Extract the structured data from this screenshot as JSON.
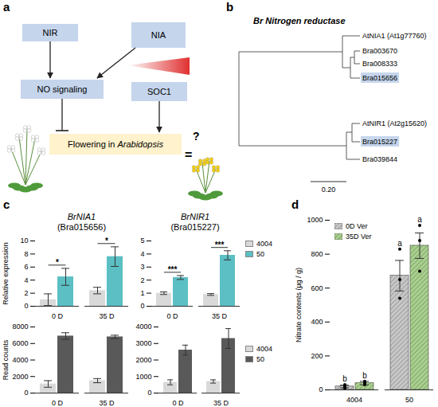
{
  "panel_labels": [
    "a",
    "b",
    "c",
    "d"
  ],
  "diagram": {
    "nodes": {
      "nir": "NIR",
      "nia": "NIA",
      "no": "NO signaling",
      "soc1": "SOC1",
      "flowering": "Flowering in Arabidopsis"
    },
    "question": "?",
    "equals": "="
  },
  "tree": {
    "title": "Br Nitrogen reductase",
    "leaves": [
      {
        "label": "AtNIA1 (At1g77760)",
        "highlight": false
      },
      {
        "label": "Bra003670",
        "highlight": false
      },
      {
        "label": "Bra008333",
        "highlight": false
      },
      {
        "label": "Bra015656",
        "highlight": true
      },
      {
        "label": "AtNIR1 (At2g15620)",
        "highlight": false
      },
      {
        "label": "Bra015227",
        "highlight": true
      },
      {
        "label": "Bra039844",
        "highlight": false
      }
    ],
    "scale_bar": {
      "value": 0.2,
      "label": "0.20"
    }
  },
  "chart_data": [
    {
      "type": "bar",
      "title": "BrNIA1",
      "subtitle": "(Bra015656)",
      "y_label": "Relative expression",
      "categories": [
        "0 D",
        "35 D"
      ],
      "series": [
        {
          "name": "4004",
          "color": "#d9d9d9",
          "values": [
            1.0,
            2.4
          ],
          "errors": [
            0.9,
            0.5
          ]
        },
        {
          "name": "50",
          "color": "#5bbfc4",
          "values": [
            4.5,
            7.6
          ],
          "errors": [
            1.3,
            1.5
          ]
        }
      ],
      "ylim": [
        0,
        10
      ],
      "yticks": [
        0,
        2,
        4,
        6,
        8,
        10
      ],
      "significance": [
        "*",
        "*"
      ]
    },
    {
      "type": "bar",
      "title": "BrNIR1",
      "subtitle": "(Bra015227)",
      "categories": [
        "0 D",
        "35 D"
      ],
      "series": [
        {
          "name": "4004",
          "color": "#d9d9d9",
          "values": [
            1.0,
            0.9
          ],
          "errors": [
            0.1,
            0.07
          ]
        },
        {
          "name": "50",
          "color": "#5bbfc4",
          "values": [
            2.2,
            3.9
          ],
          "errors": [
            0.15,
            0.35
          ]
        }
      ],
      "ylim": [
        0,
        5
      ],
      "yticks": [
        0,
        1,
        2,
        3,
        4,
        5
      ],
      "significance": [
        "***",
        "***"
      ],
      "legend": "right"
    },
    {
      "type": "bar",
      "y_label": "Read counts",
      "categories": [
        "0 D",
        "35 D"
      ],
      "series": [
        {
          "name": "4004",
          "color": "#d9d9d9",
          "values": [
            1100,
            1500
          ],
          "errors": [
            400,
            250
          ]
        },
        {
          "name": "50",
          "color": "#595959",
          "values": [
            6900,
            6800
          ],
          "errors": [
            400,
            200
          ]
        }
      ],
      "ylim": [
        0,
        8000
      ],
      "yticks": [
        0,
        2000,
        4000,
        6000,
        8000
      ]
    },
    {
      "type": "bar",
      "categories": [
        "0 D",
        "35 D"
      ],
      "series": [
        {
          "name": "4004",
          "color": "#d9d9d9",
          "values": [
            650,
            700
          ],
          "errors": [
            150,
            100
          ]
        },
        {
          "name": "50",
          "color": "#595959",
          "values": [
            2600,
            3300
          ],
          "errors": [
            300,
            600
          ]
        }
      ],
      "ylim": [
        0,
        4000
      ],
      "yticks": [
        0,
        1000,
        2000,
        3000,
        4000
      ],
      "legend": "right"
    },
    {
      "type": "bar",
      "y_label": "Nitrate contents (µg / g)",
      "categories": [
        "4004",
        "50"
      ],
      "series": [
        {
          "name": "0D Ver",
          "color": "#c8c8c8",
          "values": [
            20,
            673
          ],
          "errors": [
            8,
            90
          ],
          "letters": [
            "b",
            "a"
          ],
          "points": [
            [
              10,
              20,
              30
            ],
            [
              540,
              650,
              830
            ]
          ]
        },
        {
          "name": "35D Ver",
          "color": "#a9d18e",
          "values": [
            40,
            850
          ],
          "errors": [
            10,
            75
          ],
          "letters": [
            "b",
            "a"
          ],
          "points": [
            [
              30,
              40,
              50
            ],
            [
              700,
              880,
              970
            ]
          ]
        }
      ],
      "ylim": [
        0,
        1000
      ],
      "yticks": [
        0,
        200,
        400,
        600,
        800,
        1000
      ],
      "legend": "top-left"
    }
  ]
}
